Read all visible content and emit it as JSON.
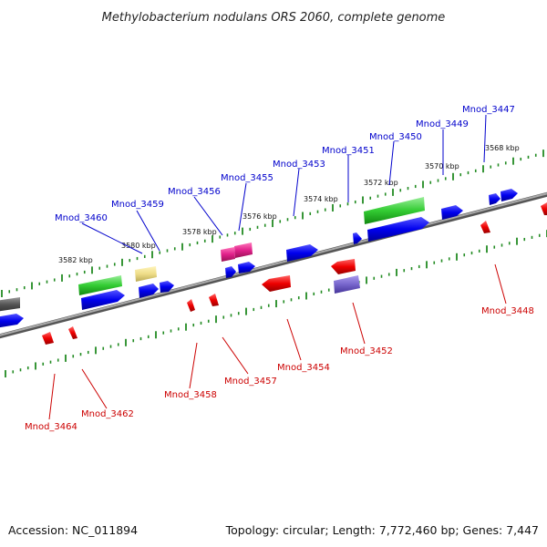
{
  "title": "Methylobacterium nodulans ORS 2060, complete genome",
  "footer": {
    "accession": "Accession: NC_011894",
    "summary": "Topology: circular; Length: 7,772,460 bp; Genes: 7,447"
  },
  "colors": {
    "background": "#ffffff",
    "backbone": "#888888",
    "ruler_tick": "#228b22",
    "label_top": "#0000cc",
    "label_bottom": "#cc0000",
    "gene_blue": "#0000ee",
    "gene_red": "#ee0000",
    "gene_green": "#33cc33",
    "gene_magenta": "#e0208a",
    "gene_yellow": "#eedd88",
    "gene_purple": "#7766cc",
    "gene_gray": "#555555"
  },
  "ruler_labels": [
    "3568 kbp",
    "3570 kbp",
    "3572 kbp",
    "3574 kbp",
    "3576 kbp",
    "3578 kbp",
    "3580 kbp",
    "3582 kbp"
  ],
  "top_labels": [
    "Mnod_3447",
    "Mnod_3449",
    "Mnod_3450",
    "Mnod_3451",
    "Mnod_3453",
    "Mnod_3455",
    "Mnod_3456",
    "Mnod_3459",
    "Mnod_3460"
  ],
  "bottom_labels": [
    "Mnod_3448",
    "Mnod_3452",
    "Mnod_3454",
    "Mnod_3457",
    "Mnod_3458",
    "Mnod_3462",
    "Mnod_3464"
  ]
}
